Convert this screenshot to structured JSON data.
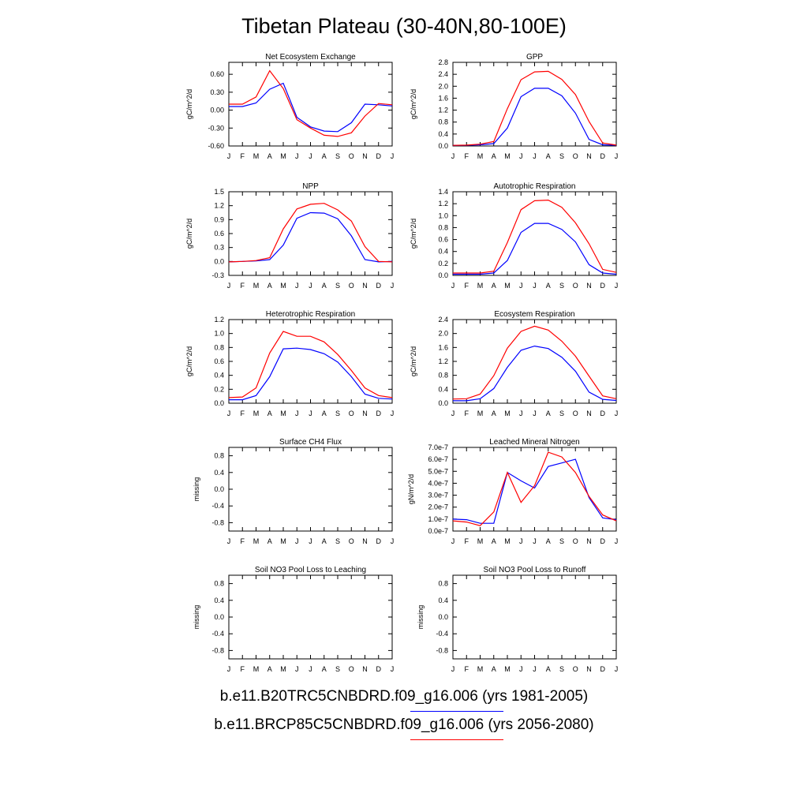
{
  "title": "Tibetan Plateau (30-40N,80-100E)",
  "legend": [
    {
      "label": "b.e11.B20TRC5CNBDRD.f09_g16.006 (yrs 1981-2005)",
      "color": "#0000ff"
    },
    {
      "label": "b.e11.BRCP85C5CNBDRD.f09_g16.006 (yrs 2056-2080)",
      "color": "#ff0000"
    }
  ],
  "colors": {
    "series1": "#0000ff",
    "series2": "#ff0000"
  },
  "chart_data": [
    {
      "type": "line",
      "title": "Net Ecosystem Exchange",
      "ylabel": "gC/m^2/d",
      "categories": [
        "J",
        "F",
        "M",
        "A",
        "M",
        "J",
        "J",
        "A",
        "S",
        "O",
        "N",
        "D",
        "J"
      ],
      "ylim": [
        -0.6,
        0.8
      ],
      "yticks": [
        -0.6,
        -0.3,
        0.0,
        0.3,
        0.6
      ],
      "ytick_labels": [
        "-0.60",
        "-0.30",
        "0.00",
        "0.30",
        "0.60"
      ],
      "series": [
        {
          "values": [
            0.06,
            0.06,
            0.12,
            0.35,
            0.45,
            -0.12,
            -0.28,
            -0.35,
            -0.36,
            -0.21,
            0.1,
            0.09,
            0.07
          ]
        },
        {
          "values": [
            0.1,
            0.1,
            0.22,
            0.66,
            0.36,
            -0.16,
            -0.3,
            -0.42,
            -0.44,
            -0.38,
            -0.1,
            0.11,
            0.09
          ]
        }
      ]
    },
    {
      "type": "line",
      "title": "GPP",
      "ylabel": "gC/m^2/d",
      "categories": [
        "J",
        "F",
        "M",
        "A",
        "M",
        "J",
        "J",
        "A",
        "S",
        "O",
        "N",
        "D",
        "J"
      ],
      "ylim": [
        0,
        2.8
      ],
      "yticks": [
        0,
        0.4,
        0.8,
        1.2,
        1.6,
        2.0,
        2.4,
        2.8
      ],
      "ytick_labels": [
        "0.0",
        "0.4",
        "0.8",
        "1.2",
        "1.6",
        "2.0",
        "2.4",
        "2.8"
      ],
      "series": [
        {
          "values": [
            0.02,
            0.02,
            0.04,
            0.08,
            0.6,
            1.65,
            1.93,
            1.93,
            1.68,
            1.1,
            0.22,
            0.04,
            0.02
          ]
        },
        {
          "values": [
            0.02,
            0.03,
            0.06,
            0.15,
            1.25,
            2.22,
            2.48,
            2.5,
            2.23,
            1.72,
            0.82,
            0.1,
            0.03
          ]
        }
      ]
    },
    {
      "type": "line",
      "title": "NPP",
      "ylabel": "gC/m^2/d",
      "categories": [
        "J",
        "F",
        "M",
        "A",
        "M",
        "J",
        "J",
        "A",
        "S",
        "O",
        "N",
        "D",
        "J"
      ],
      "ylim": [
        -0.3,
        1.5
      ],
      "yticks": [
        -0.3,
        0,
        0.3,
        0.6,
        0.9,
        1.2,
        1.5
      ],
      "ytick_labels": [
        "-0.3",
        "0.0",
        "0.3",
        "0.6",
        "0.9",
        "1.2",
        "1.5"
      ],
      "series": [
        {
          "values": [
            -0.01,
            0.0,
            0.01,
            0.04,
            0.35,
            0.93,
            1.05,
            1.04,
            0.92,
            0.55,
            0.04,
            -0.01,
            0.0
          ]
        },
        {
          "values": [
            -0.01,
            0.0,
            0.02,
            0.08,
            0.7,
            1.13,
            1.23,
            1.25,
            1.11,
            0.87,
            0.32,
            0.0,
            -0.01
          ]
        }
      ]
    },
    {
      "type": "line",
      "title": "Autotrophic Respiration",
      "ylabel": "gC/m^2/d",
      "categories": [
        "J",
        "F",
        "M",
        "A",
        "M",
        "J",
        "J",
        "A",
        "S",
        "O",
        "N",
        "D",
        "J"
      ],
      "ylim": [
        0,
        1.4
      ],
      "yticks": [
        0,
        0.2,
        0.4,
        0.6,
        0.8,
        1.0,
        1.2,
        1.4
      ],
      "ytick_labels": [
        "0.0",
        "0.2",
        "0.4",
        "0.6",
        "0.8",
        "1.0",
        "1.2",
        "1.4"
      ],
      "series": [
        {
          "values": [
            0.02,
            0.02,
            0.02,
            0.04,
            0.25,
            0.72,
            0.87,
            0.87,
            0.77,
            0.56,
            0.18,
            0.04,
            0.02
          ]
        },
        {
          "values": [
            0.04,
            0.04,
            0.04,
            0.07,
            0.55,
            1.1,
            1.25,
            1.26,
            1.14,
            0.88,
            0.53,
            0.1,
            0.05
          ]
        }
      ]
    },
    {
      "type": "line",
      "title": "Heterotrophic Respiration",
      "ylabel": "gC/m^2/d",
      "categories": [
        "J",
        "F",
        "M",
        "A",
        "M",
        "J",
        "J",
        "A",
        "S",
        "O",
        "N",
        "D",
        "J"
      ],
      "ylim": [
        0,
        1.2
      ],
      "yticks": [
        0,
        0.2,
        0.4,
        0.6,
        0.8,
        1.0,
        1.2
      ],
      "ytick_labels": [
        "0.0",
        "0.2",
        "0.4",
        "0.6",
        "0.8",
        "1.0",
        "1.2"
      ],
      "series": [
        {
          "values": [
            0.05,
            0.05,
            0.11,
            0.38,
            0.78,
            0.79,
            0.77,
            0.71,
            0.59,
            0.38,
            0.13,
            0.07,
            0.06
          ]
        },
        {
          "values": [
            0.08,
            0.09,
            0.22,
            0.72,
            1.03,
            0.96,
            0.96,
            0.88,
            0.7,
            0.47,
            0.22,
            0.11,
            0.08
          ]
        }
      ]
    },
    {
      "type": "line",
      "title": "Ecosystem Respiration",
      "ylabel": "gC/m^2/d",
      "categories": [
        "J",
        "F",
        "M",
        "A",
        "M",
        "J",
        "J",
        "A",
        "S",
        "O",
        "N",
        "D",
        "J"
      ],
      "ylim": [
        0,
        2.4
      ],
      "yticks": [
        0,
        0.4,
        0.8,
        1.2,
        1.6,
        2.0,
        2.4
      ],
      "ytick_labels": [
        "0.0",
        "0.4",
        "0.8",
        "1.2",
        "1.6",
        "2.0",
        "2.4"
      ],
      "series": [
        {
          "values": [
            0.07,
            0.07,
            0.13,
            0.42,
            1.03,
            1.52,
            1.64,
            1.57,
            1.32,
            0.92,
            0.32,
            0.11,
            0.08
          ]
        },
        {
          "values": [
            0.12,
            0.13,
            0.26,
            0.79,
            1.58,
            2.06,
            2.21,
            2.1,
            1.78,
            1.35,
            0.78,
            0.21,
            0.13
          ]
        }
      ]
    },
    {
      "type": "line",
      "title": "Surface CH4 Flux",
      "ylabel": "missing",
      "categories": [
        "J",
        "F",
        "M",
        "A",
        "M",
        "J",
        "J",
        "A",
        "S",
        "O",
        "N",
        "D",
        "J"
      ],
      "ylim": [
        -1.0,
        1.0
      ],
      "yticks": [
        -0.8,
        -0.4,
        0.0,
        0.4,
        0.8
      ],
      "ytick_labels": [
        "-0.8",
        "-0.4",
        "0.0",
        "0.4",
        "0.8"
      ],
      "series": []
    },
    {
      "type": "line",
      "title": "Leached Mineral Nitrogen",
      "ylabel": "gN/m^2/d",
      "categories": [
        "J",
        "F",
        "M",
        "A",
        "M",
        "J",
        "J",
        "A",
        "S",
        "O",
        "N",
        "D",
        "J"
      ],
      "ylim": [
        0,
        7e-07
      ],
      "yticks": [
        0,
        1e-07,
        2e-07,
        3e-07,
        4e-07,
        5e-07,
        6e-07,
        7e-07
      ],
      "ytick_labels": [
        "0.0e-7",
        "1.0e-7",
        "2.0e-7",
        "3.0e-7",
        "4.0e-7",
        "5.0e-7",
        "6.0e-7",
        "7.0e-7"
      ],
      "series": [
        {
          "values": [
            1e-07,
            9.5e-08,
            6.5e-08,
            6.5e-08,
            4.9e-07,
            4.2e-07,
            3.6e-07,
            5.4e-07,
            5.7e-07,
            6e-07,
            2.8e-07,
            1.1e-07,
            9.5e-08
          ]
        },
        {
          "values": [
            8.5e-08,
            7.5e-08,
            4.5e-08,
            1.6e-07,
            4.9e-07,
            2.4e-07,
            3.8e-07,
            6.6e-07,
            6.2e-07,
            4.9e-07,
            2.9e-07,
            1.35e-07,
            8.5e-08
          ]
        }
      ]
    },
    {
      "type": "line",
      "title": "Soil NO3 Pool Loss to Leaching",
      "ylabel": "missing",
      "categories": [
        "J",
        "F",
        "M",
        "A",
        "M",
        "J",
        "J",
        "A",
        "S",
        "O",
        "N",
        "D",
        "J"
      ],
      "ylim": [
        -1.0,
        1.0
      ],
      "yticks": [
        -0.8,
        -0.4,
        0.0,
        0.4,
        0.8
      ],
      "ytick_labels": [
        "-0.8",
        "-0.4",
        "0.0",
        "0.4",
        "0.8"
      ],
      "series": []
    },
    {
      "type": "line",
      "title": "Soil NO3 Pool Loss to Runoff",
      "ylabel": "missing",
      "categories": [
        "J",
        "F",
        "M",
        "A",
        "M",
        "J",
        "J",
        "A",
        "S",
        "O",
        "N",
        "D",
        "J"
      ],
      "ylim": [
        -1.0,
        1.0
      ],
      "yticks": [
        -0.8,
        -0.4,
        0.0,
        0.4,
        0.8
      ],
      "ytick_labels": [
        "-0.8",
        "-0.4",
        "0.0",
        "0.4",
        "0.8"
      ],
      "series": []
    }
  ]
}
